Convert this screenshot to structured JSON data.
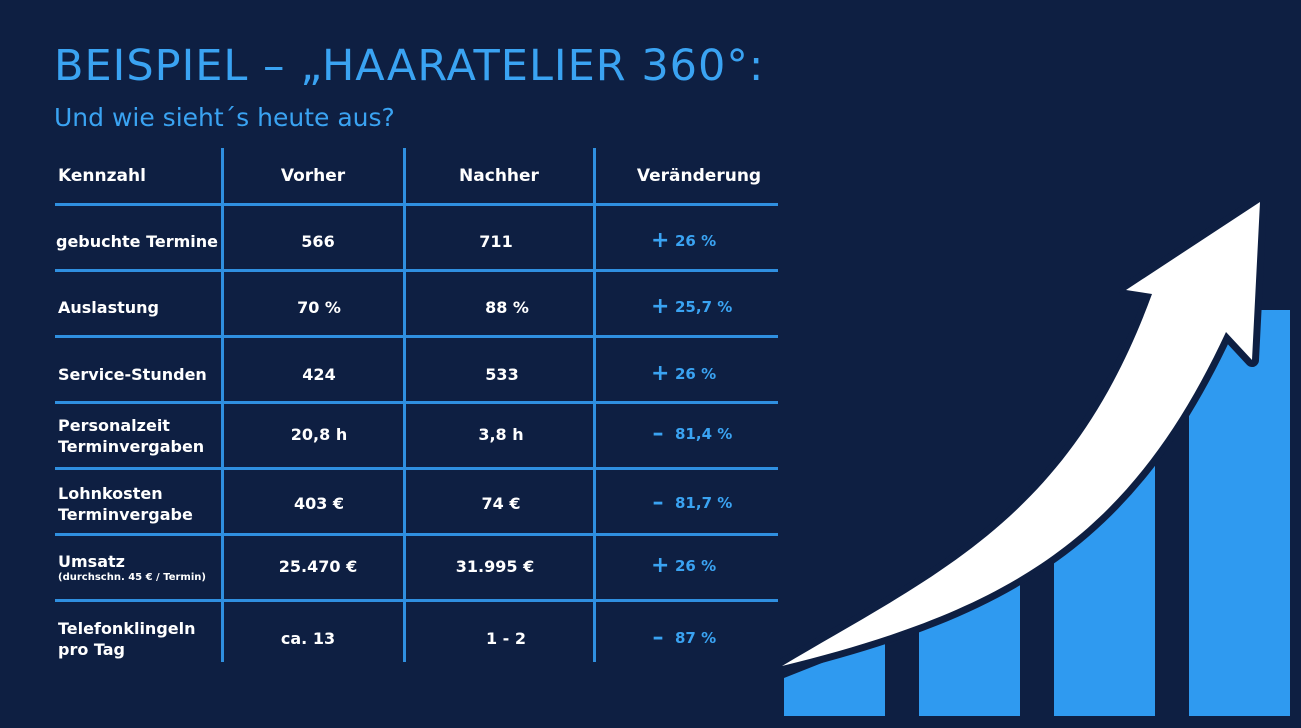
{
  "title": "BEISPIEL – „HAARATELIER 360°:",
  "subtitle": "Und wie sieht´s heute aus?",
  "table": {
    "headers": [
      "Kennzahl",
      "Vorher",
      "Nachher",
      "Veränderung"
    ],
    "rows": [
      {
        "label": "gebuchte Termine",
        "label2": "",
        "note": "",
        "before": "566",
        "after": "711",
        "sign": "+",
        "change": "26 %"
      },
      {
        "label": "Auslastung",
        "label2": "",
        "note": "",
        "before": "70 %",
        "after": "88 %",
        "sign": "+",
        "change": "25,7 %"
      },
      {
        "label": "Service-Stunden",
        "label2": "",
        "note": "",
        "before": "424",
        "after": "533",
        "sign": "+",
        "change": "26 %"
      },
      {
        "label": "Personalzeit",
        "label2": "Terminvergaben",
        "note": "",
        "before": "20,8 h",
        "after": "3,8 h",
        "sign": "–",
        "change": "81,4 %"
      },
      {
        "label": "Lohnkosten",
        "label2": "Terminvergabe",
        "note": "",
        "before": "403 €",
        "after": "74 €",
        "sign": "–",
        "change": "81,7 %"
      },
      {
        "label": "Umsatz",
        "label2": "",
        "note": "(durchschn. 45 € / Termin)",
        "before": "25.470 €",
        "after": "31.995 €",
        "sign": "+",
        "change": "26 %"
      },
      {
        "label": "Telefonklingeln",
        "label2": "pro Tag",
        "note": "",
        "before": "ca. 13",
        "after": "1 - 2",
        "sign": "–",
        "change": "87 %"
      }
    ]
  },
  "graphic": {
    "name": "growth-bars-arrow-icon",
    "bar_color": "#2f9af0",
    "arrow_color": "#ffffff"
  }
}
